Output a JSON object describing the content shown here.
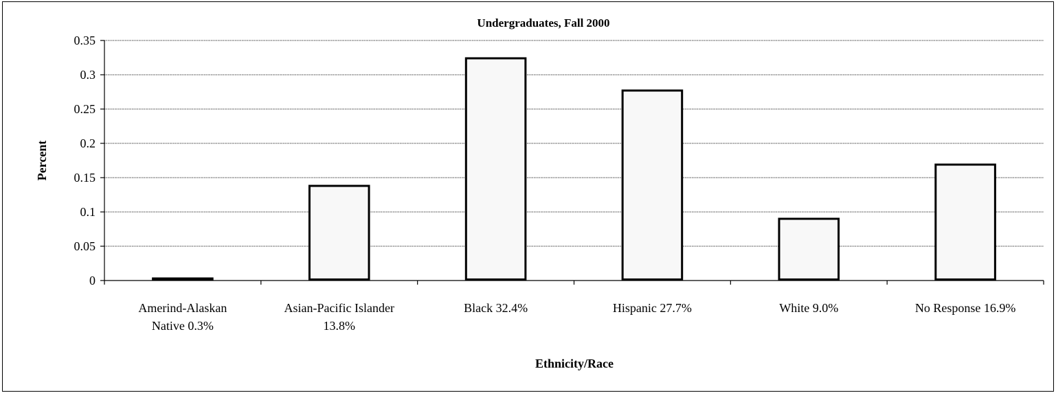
{
  "chart_data": {
    "type": "bar",
    "title": "Undergraduates, Fall 2000",
    "xlabel": "Ethnicity/Race",
    "ylabel": "Percent",
    "categories": [
      [
        "Amerind-Alaskan",
        "Native 0.3%"
      ],
      [
        "Asian-Pacific Islander",
        "13.8%"
      ],
      [
        "Black 32.4%"
      ],
      [
        "Hispanic 27.7%"
      ],
      [
        "White 9.0%"
      ],
      [
        "No Response 16.9%"
      ]
    ],
    "values": [
      0.003,
      0.138,
      0.324,
      0.277,
      0.09,
      0.169
    ],
    "ylim": [
      0,
      0.35
    ],
    "yticks": [
      "0",
      "0.05",
      "0.1",
      "0.15",
      "0.2",
      "0.25",
      "0.3",
      "0.35"
    ],
    "grid": true,
    "legend": "none",
    "bar_fill": "#f8f8f8",
    "bar_stroke": "#000000"
  }
}
